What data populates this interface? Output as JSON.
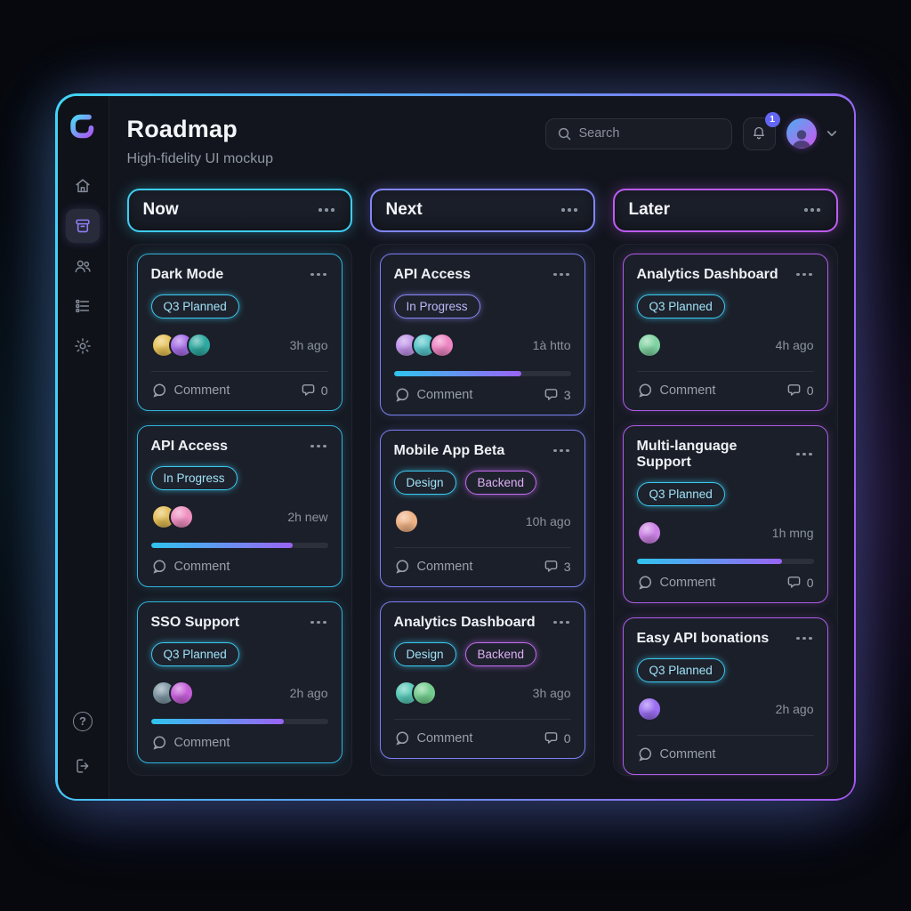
{
  "colors": {
    "frame_from": "#3fd6f7",
    "frame_mid": "#5b9df5",
    "frame_to": "#a958f2",
    "badge": "#6366f1",
    "progress_from": "#2fc4ee",
    "progress_to": "#9a63f5"
  },
  "header": {
    "title": "Roadmap",
    "subtitle": "High-fidelity UI mockup",
    "search_placeholder": "Search",
    "search_icon": "search-icon",
    "bell_icon": "bell-icon",
    "notification_badge": "1",
    "avatar_icon": "user-avatar",
    "chevron_icon": "chevron-down-icon"
  },
  "sidebar": {
    "logo_icon": "app-logo",
    "items": [
      {
        "label": "home",
        "icon": "home-icon",
        "active": false
      },
      {
        "label": "board",
        "icon": "kanban-board-icon",
        "active": true
      },
      {
        "label": "team",
        "icon": "users-icon",
        "active": false
      },
      {
        "label": "tasks",
        "icon": "task-list-icon",
        "active": false
      },
      {
        "label": "settings",
        "icon": "gear-icon",
        "active": false
      }
    ],
    "footer_items": [
      {
        "label": "help",
        "icon": "help-icon"
      },
      {
        "label": "logout",
        "icon": "logout-icon"
      }
    ]
  },
  "board": {
    "columns": [
      {
        "title": "Now",
        "menu_icon": "ellipsis-icon",
        "accent": "#3ecdf2",
        "card_border": "#2fb3dd",
        "glow": "rgba(62,205,242,0.35)",
        "cards": [
          {
            "title": "Dark Mode",
            "tags": [
              {
                "label": "Q3 Planned",
                "border": "#3cc9ef",
                "text": "#9fe2f8"
              }
            ],
            "avatars": [
              "#e7c257",
              "#a86ee8",
              "#2fa9a0"
            ],
            "time": "3h ago",
            "comment_label": "Comment",
            "comment_icon": "speech-bubble-icon",
            "comment_count": "0"
          },
          {
            "title": "API Access",
            "tags": [
              {
                "label": "In Progress",
                "border": "#3cc9ef",
                "text": "#9fe2f8"
              }
            ],
            "avatars": [
              "#e3bd55",
              "#ef8fc0"
            ],
            "time": "2h new",
            "progress_percent": 80,
            "comment_label": "Comment",
            "comment_icon": "speech-bubble-icon"
          },
          {
            "title": "SSO Support",
            "tags": [
              {
                "label": "Q3 Planned",
                "border": "#3cc9ef",
                "text": "#9fe2f8"
              }
            ],
            "avatars": [
              "#7e96a3",
              "#c45fd8"
            ],
            "time": "2h ago",
            "progress_percent": 75,
            "comment_label": "Comment",
            "comment_icon": "speech-bubble-icon"
          }
        ]
      },
      {
        "title": "Next",
        "menu_icon": "ellipsis-icon",
        "accent": "#8186f8",
        "card_border": "#7a7ef0",
        "glow": "rgba(129,134,248,0.35)",
        "cards": [
          {
            "title": "API Access",
            "tags": [
              {
                "label": "In Progress",
                "border": "#8b87f6",
                "text": "#bcb8fb"
              }
            ],
            "avatars": [
              "#bf93e8",
              "#58c6c9",
              "#ee86c4"
            ],
            "time": "1à htto",
            "progress_percent": 72,
            "comment_label": "Comment",
            "comment_icon": "speech-bubble-icon",
            "comment_count": "3"
          },
          {
            "title": "Mobile App Beta",
            "tags": [
              {
                "label": "Design",
                "border": "#3cc9ef",
                "text": "#9fe2f8"
              },
              {
                "label": "Backend",
                "border": "#c06cf0",
                "text": "#dfaef7"
              }
            ],
            "avatars": [
              "#efb285"
            ],
            "time": "10h ago",
            "comment_label": "Comment",
            "comment_icon": "speech-bubble-icon",
            "comment_count": "3"
          },
          {
            "title": "Analytics Dashboard",
            "tags": [
              {
                "label": "Design",
                "border": "#3cc9ef",
                "text": "#9fe2f8"
              },
              {
                "label": "Backend",
                "border": "#c06cf0",
                "text": "#dfaef7"
              }
            ],
            "avatars": [
              "#57c9b8",
              "#74cd8e"
            ],
            "time": "3h ago",
            "comment_label": "Comment",
            "comment_icon": "speech-bubble-icon",
            "comment_count": "0"
          }
        ]
      },
      {
        "title": "Later",
        "menu_icon": "ellipsis-icon",
        "accent": "#bd5cf2",
        "card_border": "#ad5ce6",
        "glow": "rgba(189,92,242,0.35)",
        "cards": [
          {
            "title": "Analytics Dashboard",
            "tags": [
              {
                "label": "Q3 Planned",
                "border": "#3cc9ef",
                "text": "#9fe2f8"
              }
            ],
            "avatars": [
              "#7fd3a2"
            ],
            "time": "4h ago",
            "comment_label": "Comment",
            "comment_icon": "speech-bubble-icon",
            "comment_count": "0"
          },
          {
            "title": "Multi-language Support",
            "tags": [
              {
                "label": "Q3 Planned",
                "border": "#3cc9ef",
                "text": "#9fe2f8"
              }
            ],
            "avatars": [
              "#cc82e5"
            ],
            "time": "1h mng",
            "progress_percent": 82,
            "comment_label": "Comment",
            "comment_icon": "speech-bubble-icon",
            "comment_count": "0"
          },
          {
            "title": "Easy API bonations",
            "tags": [
              {
                "label": "Q3 Planned",
                "border": "#3cc9ef",
                "text": "#9fe2f8"
              }
            ],
            "avatars": [
              "#9b6ef2"
            ],
            "time": "2h ago",
            "comment_label": "Comment",
            "comment_icon": "speech-bubble-icon"
          }
        ]
      }
    ]
  }
}
